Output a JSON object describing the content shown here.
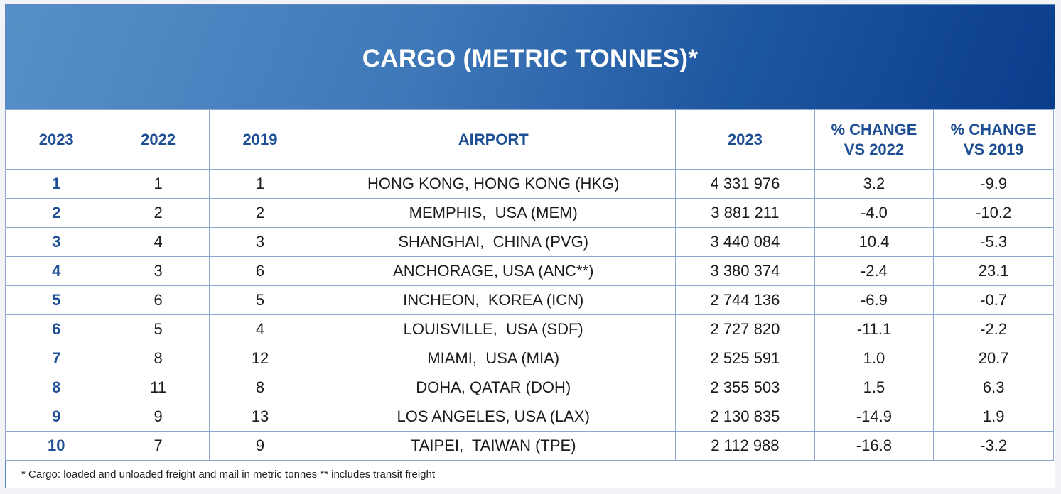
{
  "title": "CARGO (METRIC TONNES)*",
  "headers": [
    "2023",
    "2022",
    "2019",
    "AIRPORT",
    "2023",
    "% CHANGE VS 2022",
    "% CHANGE VS 2019"
  ],
  "rows": [
    [
      "1",
      "1",
      "1",
      "HONG KONG, HONG KONG (HKG)",
      "4 331 976",
      "3.2",
      "-9.9"
    ],
    [
      "2",
      "2",
      "2",
      "MEMPHIS,  USA (MEM)",
      "3 881 211",
      "-4.0",
      "-10.2"
    ],
    [
      "3",
      "4",
      "3",
      "SHANGHAI,  CHINA (PVG)",
      "3 440 084",
      "10.4",
      "-5.3"
    ],
    [
      "4",
      "3",
      "6",
      "ANCHORAGE, USA (ANC**)",
      "3 380 374",
      "-2.4",
      "23.1"
    ],
    [
      "5",
      "6",
      "5",
      "INCHEON,  KOREA (ICN)",
      "2 744 136",
      "-6.9",
      "-0.7"
    ],
    [
      "6",
      "5",
      "4",
      "LOUISVILLE,  USA (SDF)",
      "2 727 820",
      "-11.1",
      "-2.2"
    ],
    [
      "7",
      "8",
      "12",
      "MIAMI,  USA (MIA)",
      "2 525 591",
      "1.0",
      "20.7"
    ],
    [
      "8",
      "11",
      "8",
      "DOHA, QATAR (DOH)",
      "2 355 503",
      "1.5",
      "6.3"
    ],
    [
      "9",
      "9",
      "13",
      "LOS ANGELES, USA (LAX)",
      "2 130 835",
      "-14.9",
      "1.9"
    ],
    [
      "10",
      "7",
      "9",
      "TAIPEI,  TAIWAN (TPE)",
      "2 112 988",
      "-16.8",
      "-3.2"
    ]
  ],
  "footnote": "* Cargo: loaded and unloaded freight and mail in metric tonnes ** includes transit freight",
  "colors": {
    "header_text": "#1e4f95",
    "banner_dark": "#0a3c8c",
    "banner_light": "#5791c8"
  }
}
